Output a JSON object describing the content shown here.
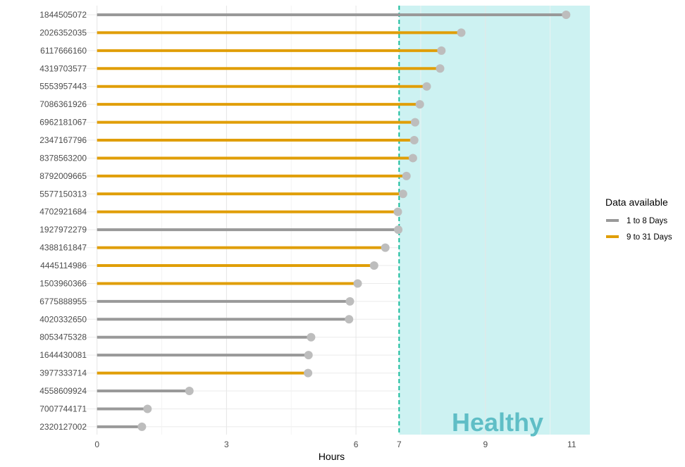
{
  "chart_data": {
    "type": "lollipop",
    "orientation": "horizontal",
    "xlabel": "Hours",
    "ylabel": "",
    "xlim": [
      -0.55,
      11.42
    ],
    "x_ticks": [
      0,
      3,
      6,
      7,
      9,
      11
    ],
    "reference_line": {
      "x": 7,
      "style": "dashed",
      "color": "#1abc9c"
    },
    "highlight_region": {
      "x_from": 7,
      "x_to": 11.42,
      "label": "Healthy",
      "color": "#cdf2f2",
      "label_color": "#5fbec6"
    },
    "grid": true,
    "legend": {
      "title": "Data available",
      "position": "right",
      "entries": [
        {
          "name": "1 to 8 Days",
          "color": "#999999"
        },
        {
          "name": "9 to 31 Days",
          "color": "#e09e07"
        }
      ]
    },
    "point_color": "#bdbdbd",
    "categories": [
      "1844505072",
      "2026352035",
      "6117666160",
      "4319703577",
      "5553957443",
      "7086361926",
      "6962181067",
      "2347167796",
      "8378563200",
      "8792009665",
      "5577150313",
      "4702921684",
      "1927972279",
      "4388161847",
      "4445114986",
      "1503960366",
      "6775888955",
      "4020332650",
      "8053475328",
      "1644430081",
      "3977333714",
      "4558609924",
      "7007744171",
      "2320127002"
    ],
    "values": [
      10.87,
      8.44,
      7.98,
      7.95,
      7.64,
      7.48,
      7.37,
      7.35,
      7.32,
      7.17,
      7.09,
      6.97,
      6.98,
      6.68,
      6.42,
      6.04,
      5.86,
      5.84,
      4.96,
      4.9,
      4.89,
      2.14,
      1.17,
      1.04
    ],
    "groups": [
      "1 to 8 Days",
      "9 to 31 Days",
      "9 to 31 Days",
      "9 to 31 Days",
      "9 to 31 Days",
      "9 to 31 Days",
      "9 to 31 Days",
      "9 to 31 Days",
      "9 to 31 Days",
      "9 to 31 Days",
      "9 to 31 Days",
      "9 to 31 Days",
      "1 to 8 Days",
      "9 to 31 Days",
      "9 to 31 Days",
      "9 to 31 Days",
      "1 to 8 Days",
      "1 to 8 Days",
      "1 to 8 Days",
      "1 to 8 Days",
      "9 to 31 Days",
      "1 to 8 Days",
      "1 to 8 Days",
      "1 to 8 Days"
    ]
  }
}
